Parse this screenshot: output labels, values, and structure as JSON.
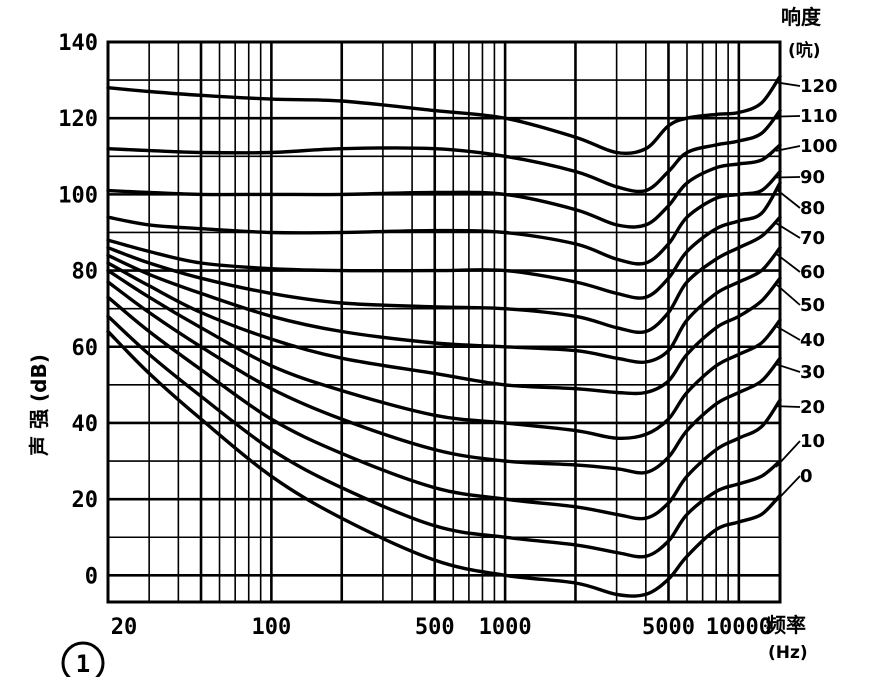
{
  "figure_number": "1",
  "chart_data": {
    "type": "line",
    "title": "",
    "xlabel": "频率",
    "xlabel_unit": "(Hz)",
    "ylabel": "声 强 (dB)",
    "legend_title": "响度",
    "legend_unit": "(吭)",
    "x_scale": "log",
    "xlim": [
      20,
      15000
    ],
    "ylim": [
      -7,
      140
    ],
    "grid": true,
    "x_tick_labels": [
      {
        "value": 20,
        "label": "20"
      },
      {
        "value": 100,
        "label": "100"
      },
      {
        "value": 500,
        "label": "500"
      },
      {
        "value": 1000,
        "label": "1000"
      },
      {
        "value": 5000,
        "label": "5000"
      },
      {
        "value": 10000,
        "label": "10000"
      }
    ],
    "y_ticks": [
      0,
      20,
      40,
      60,
      80,
      100,
      120,
      140
    ],
    "x": [
      20,
      30,
      50,
      100,
      200,
      500,
      1000,
      2000,
      3000,
      4000,
      5000,
      6000,
      8000,
      10000,
      12500,
      15000
    ],
    "series": [
      {
        "name": "120",
        "values": [
          128,
          127,
          126,
          125,
          124.5,
          122,
          120,
          115,
          111,
          112,
          118,
          120,
          121,
          121.5,
          124,
          131
        ]
      },
      {
        "name": "110",
        "values": [
          112,
          111.5,
          111,
          111,
          112,
          112,
          110,
          106,
          102,
          101,
          106,
          111,
          113,
          114,
          116,
          122
        ]
      },
      {
        "name": "100",
        "values": [
          101,
          100.5,
          100,
          100,
          100,
          100.5,
          100,
          96,
          92,
          92,
          97,
          103,
          107,
          108,
          109,
          113
        ]
      },
      {
        "name": "90",
        "values": [
          94,
          92,
          91,
          90,
          90,
          90.5,
          90,
          87,
          83,
          82,
          87,
          94,
          99,
          100,
          101,
          106
        ]
      },
      {
        "name": "80",
        "values": [
          88,
          85,
          82,
          80.5,
          80,
          80,
          80,
          77,
          74,
          73,
          78,
          85,
          91,
          93,
          95,
          103
        ]
      },
      {
        "name": "70",
        "values": [
          86,
          82,
          78,
          74,
          71.5,
          70.5,
          70,
          68,
          65,
          64,
          69,
          77,
          83,
          86,
          89,
          94
        ]
      },
      {
        "name": "60",
        "values": [
          84,
          79,
          74,
          68,
          64,
          61,
          60,
          59,
          57,
          56,
          59,
          67,
          74,
          77,
          80,
          86
        ]
      },
      {
        "name": "50",
        "values": [
          82,
          76,
          69,
          62,
          57,
          53,
          50,
          49,
          48,
          48,
          51,
          58,
          65,
          68,
          72,
          78
        ]
      },
      {
        "name": "40",
        "values": [
          80,
          73,
          65,
          55,
          48.5,
          42,
          40,
          38,
          36,
          37,
          41,
          48,
          55,
          58,
          61,
          67
        ]
      },
      {
        "name": "30",
        "values": [
          77,
          69,
          60,
          49,
          41,
          33,
          30,
          29,
          28,
          27,
          31,
          38,
          45,
          48,
          51,
          57
        ]
      },
      {
        "name": "20",
        "values": [
          73,
          64,
          54,
          41,
          32,
          23,
          20,
          18,
          16,
          15,
          19,
          26,
          33,
          36,
          39,
          46
        ]
      },
      {
        "name": "10",
        "values": [
          68,
          58,
          47,
          33,
          23,
          13,
          10,
          8,
          6,
          5,
          9,
          16,
          22,
          24,
          26,
          30
        ]
      },
      {
        "name": "0",
        "values": [
          64,
          53,
          41,
          26,
          15,
          4,
          0,
          -2,
          -5,
          -5,
          -1,
          5,
          12,
          14,
          16,
          21
        ]
      }
    ]
  }
}
